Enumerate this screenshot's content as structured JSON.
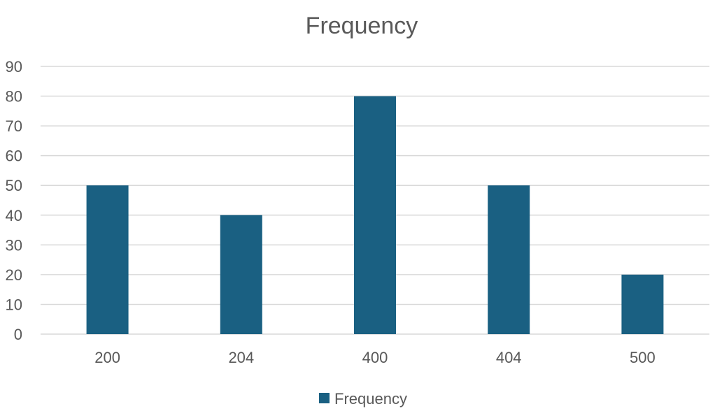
{
  "chart_data": {
    "type": "bar",
    "title": "Frequency",
    "categories": [
      "200",
      "204",
      "400",
      "404",
      "500"
    ],
    "series": [
      {
        "name": "Frequency",
        "values": [
          50,
          40,
          80,
          50,
          20
        ]
      }
    ],
    "xlabel": "",
    "ylabel": "",
    "ylim": [
      0,
      90
    ],
    "yticks": [
      "0",
      "10",
      "20",
      "30",
      "40",
      "50",
      "60",
      "70",
      "80",
      "90"
    ],
    "grid": true,
    "legend": "bottom",
    "colors": {
      "bar": "#1a6082",
      "grid": "#d9d9d9",
      "text": "#595959"
    }
  }
}
